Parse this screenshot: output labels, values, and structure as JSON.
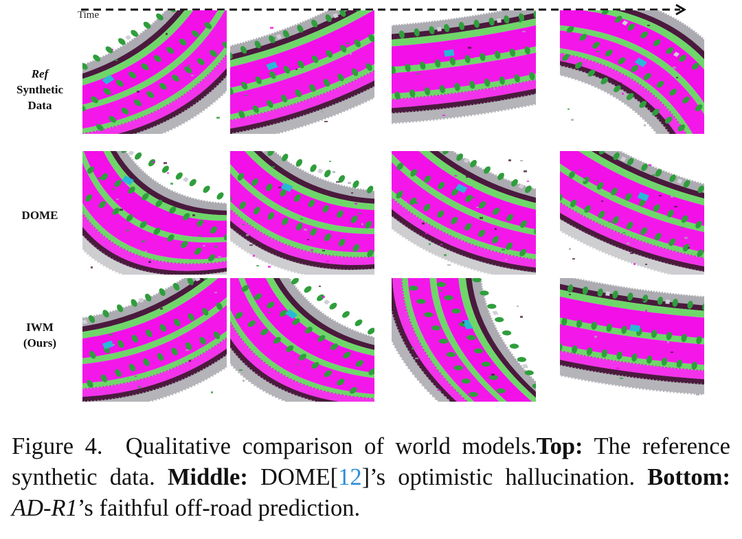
{
  "figure": {
    "time_label": "Time",
    "rows": [
      {
        "label_emph": "Ref",
        "label_rest": [
          "Synthetic",
          "Data"
        ]
      },
      {
        "label_emph": "",
        "label_rest": [
          "DOME"
        ]
      },
      {
        "label_emph": "",
        "label_rest": [
          "IWM",
          "(Ours)"
        ]
      }
    ],
    "colors": {
      "road": "#f20fe8",
      "sidewalk": "#6fd66a",
      "vegetation": "#2f9e3c",
      "building": "#a7a7ad",
      "terrain": "#4a1a3d",
      "vehicle": "#29b8d6",
      "light_pole": "#d0d0d6"
    }
  },
  "caption": {
    "prefix": "Figure 4.",
    "text1": "Qualitative comparison of world models.",
    "top_label": "Top:",
    "top_text": "The reference synthetic data.",
    "middle_label": "Middle:",
    "middle_text_a": "DOME[",
    "ref_number": "12",
    "middle_text_b": "]’s optimistic hallucination.",
    "bottom_label": "Bottom:",
    "bottom_model": "AD-R1",
    "bottom_text": "’s faithful off-road prediction."
  }
}
